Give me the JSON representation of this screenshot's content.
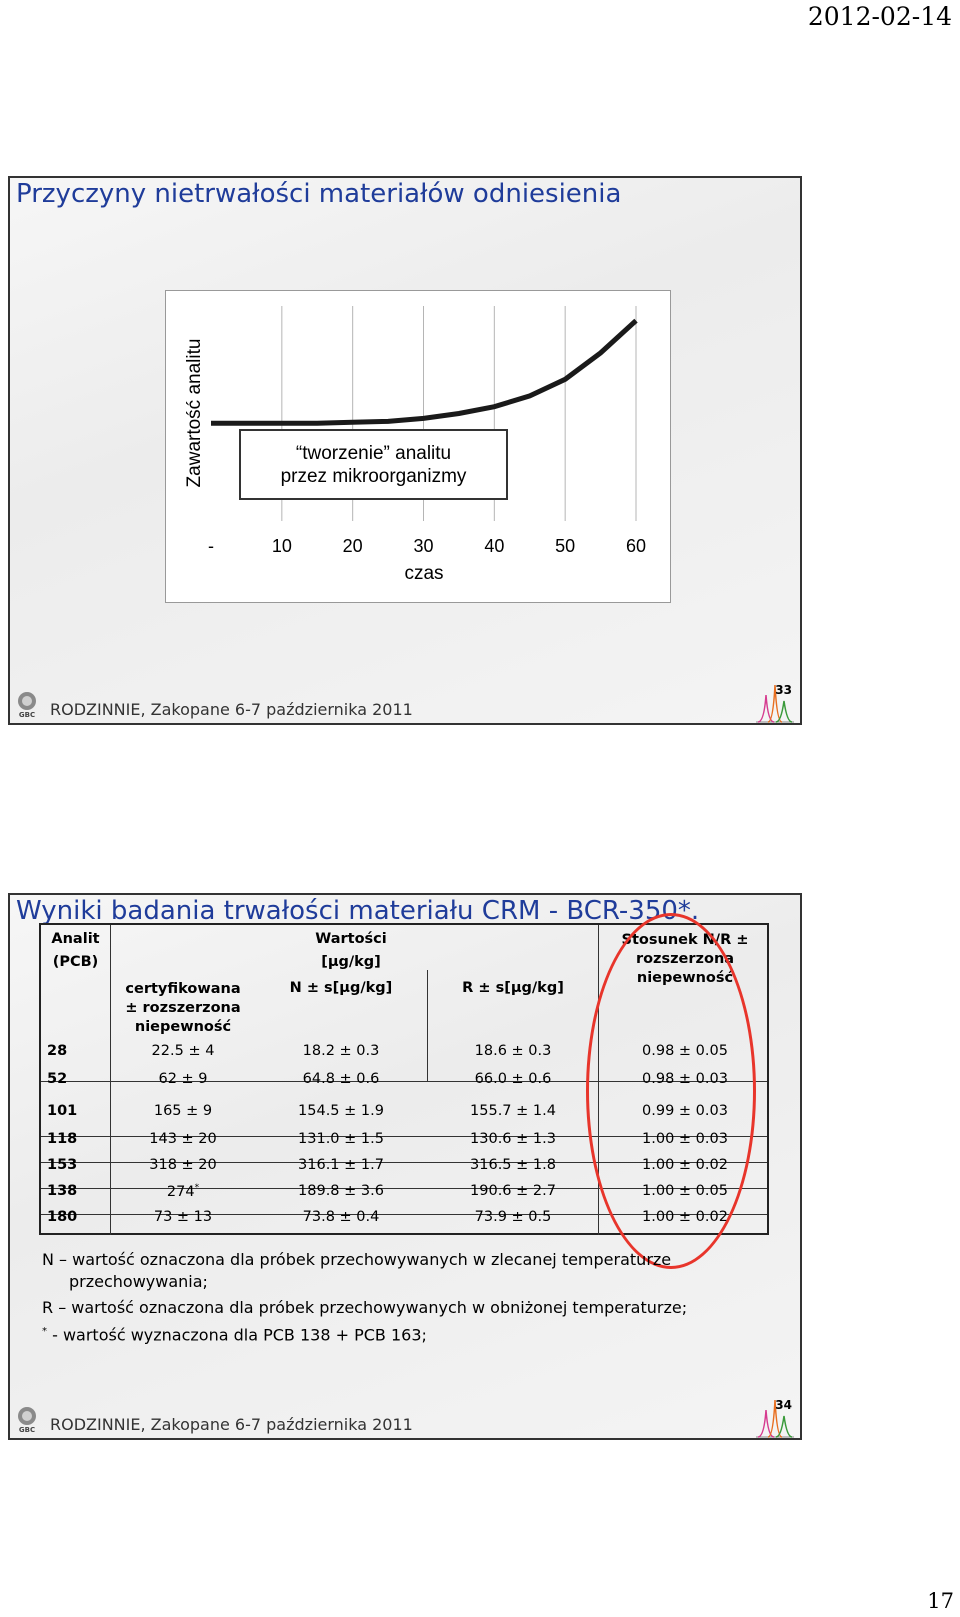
{
  "page": {
    "date": "2012-02-14",
    "number": "17"
  },
  "slide1": {
    "title": "Przyczyny nietrwałości materiałów odniesienia",
    "chart_data": {
      "type": "line",
      "ylabel": "Zawartość analitu",
      "xlabel": "czas",
      "x_tick_labels": [
        "-",
        "10",
        "20",
        "30",
        "40",
        "50",
        "60"
      ],
      "annotation": [
        "“tworzenie” analitu",
        "przez mikroorganizmy"
      ],
      "series": [
        {
          "x": [
            0,
            5,
            10,
            15,
            20,
            25,
            30,
            35,
            40,
            45,
            50,
            55,
            60
          ],
          "y": [
            1.0,
            1.0,
            1.0,
            1.0,
            1.01,
            1.02,
            1.05,
            1.1,
            1.17,
            1.28,
            1.45,
            1.72,
            2.05
          ]
        }
      ],
      "xlim": [
        0,
        60
      ],
      "ylim": [
        0,
        2.2
      ],
      "grid": "vertical",
      "line_color": "#1a1a1a"
    },
    "footer": {
      "text": "RODZINNIE, Zakopane 6-7 października 2011",
      "slide_number": "33"
    }
  },
  "slide2": {
    "title": "Wyniki badania trwałości materiału CRM - BCR-350*.",
    "table": {
      "headers": {
        "analit": "Analit",
        "analit_sub": "(PCB)",
        "wartosci": "Wartości",
        "wartosci_unit": "[µg/kg]",
        "cert": [
          "certyfikowana",
          "± rozszerzona",
          "niepewność"
        ],
        "n": "N ± s[µg/kg]",
        "r": "R ± s[µg/kg]",
        "ratio": [
          "Stosunek N/R ±",
          "rozszerzona",
          "niepewność"
        ]
      },
      "rows": [
        {
          "pcb": "28",
          "cert": "22.5 ± 4",
          "n": "18.2 ± 0.3",
          "r": "18.6 ± 0.3",
          "ratio": "0.98 ± 0.05"
        },
        {
          "pcb": "52",
          "cert": "62 ± 9",
          "n": "64.8 ± 0.6",
          "r": "66.0 ± 0.6",
          "ratio": "0.98 ± 0.03"
        },
        {
          "pcb": "101",
          "cert": "165 ± 9",
          "n": "154.5 ± 1.9",
          "r": "155.7 ± 1.4",
          "ratio": "0.99 ± 0.03"
        },
        {
          "pcb": "118",
          "cert": "143 ± 20",
          "n": "131.0 ± 1.5",
          "r": "130.6 ± 1.3",
          "ratio": "1.00 ± 0.03"
        },
        {
          "pcb": "153",
          "cert": "318 ± 20",
          "n": "316.1 ± 1.7",
          "r": "316.5 ± 1.8",
          "ratio": "1.00 ± 0.02"
        },
        {
          "pcb": "138",
          "cert": "274",
          "cert_sup": "*",
          "n": "189.8 ± 3.6",
          "r": "190.6 ± 2.7",
          "ratio": "1.00 ± 0.05"
        },
        {
          "pcb": "180",
          "cert": "73 ± 13",
          "n": "73.8 ± 0.4",
          "r": "73.9 ± 0.5",
          "ratio": "1.00 ± 0.02"
        }
      ]
    },
    "notes": {
      "n_line1": "N – wartość oznaczona dla próbek przechowywanych w zlecanej temperaturze",
      "n_line2": "przechowywania;",
      "r_line": "R – wartość oznaczona dla próbek przechowywanych w obniżonej temperaturze;",
      "star_mark": "*",
      "star_line": " - wartość wyznaczona dla PCB 138 + PCB 163;"
    },
    "highlight_color": "#e8352b",
    "footer": {
      "text": "RODZINNIE, Zakopane 6-7 października 2011",
      "slide_number": "34"
    }
  }
}
